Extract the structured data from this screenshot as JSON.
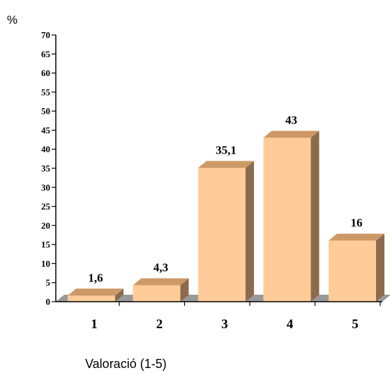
{
  "chart_data": {
    "type": "bar",
    "categories": [
      "1",
      "2",
      "3",
      "4",
      "5"
    ],
    "values": [
      1.6,
      4.3,
      35.1,
      43,
      16
    ],
    "value_labels": [
      "1,6",
      "4,3",
      "35,1",
      "43",
      "16"
    ],
    "title": "",
    "xlabel": "Valoració (1-5)",
    "ylabel": "%",
    "ylim": [
      0,
      70
    ],
    "yticks": [
      0,
      5,
      10,
      15,
      20,
      25,
      30,
      35,
      40,
      45,
      50,
      55,
      60,
      65,
      70
    ],
    "grid": false,
    "style": "3d",
    "colors": {
      "bar_front": "#FFCC99",
      "bar_top": "#CC9966",
      "bar_side": "#8C6A4C",
      "floor": "#999999",
      "axis": "#000000"
    }
  }
}
